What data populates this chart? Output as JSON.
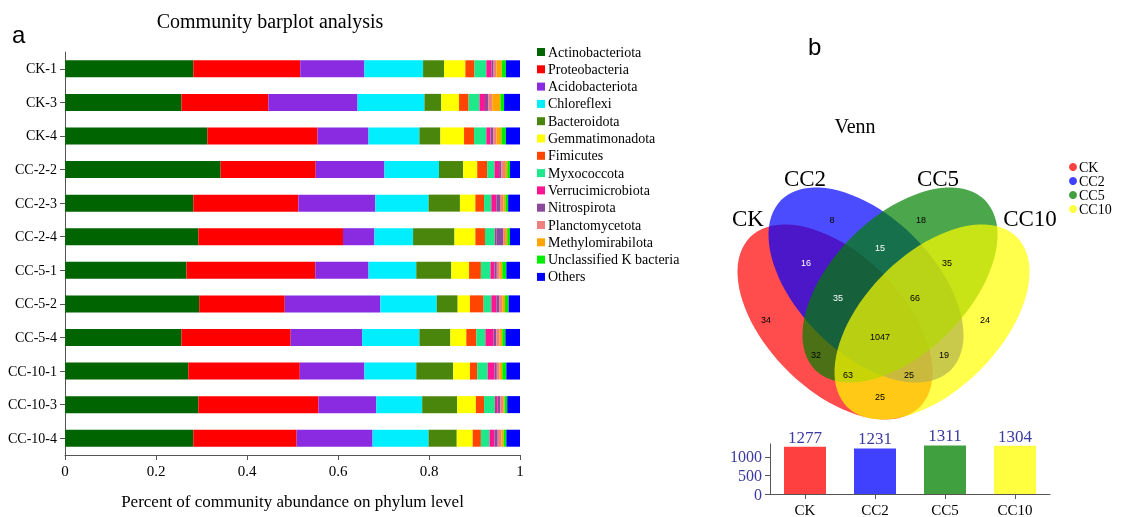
{
  "chart_data": [
    {
      "type": "bar",
      "title": "Community barplot analysis",
      "xlabel": "Percent of community abundance on phylum level",
      "annotations": [
        "a"
      ],
      "orientation": "horizontal",
      "stacked": true,
      "legend": "right",
      "xlim": [
        0,
        1
      ],
      "xticks": [
        0,
        0.2,
        0.4,
        0.6,
        0.8,
        1
      ],
      "categories": [
        "CK-1",
        "CK-3",
        "CK-4",
        "CC-2-2",
        "CC-2-3",
        "CC-2-4",
        "CC-5-1",
        "CC-5-2",
        "CC-5-4",
        "CC-10-1",
        "CC-10-3",
        "CC-10-4"
      ],
      "series": [
        {
          "name": "Actinobacteriota",
          "color": "#006400",
          "values": [
            0.282,
            0.256,
            0.313,
            0.342,
            0.282,
            0.293,
            0.267,
            0.295,
            0.256,
            0.271,
            0.293,
            0.282
          ]
        },
        {
          "name": "Proteobacteria",
          "color": "#ff0000",
          "values": [
            0.235,
            0.191,
            0.242,
            0.209,
            0.231,
            0.318,
            0.283,
            0.188,
            0.24,
            0.245,
            0.264,
            0.227
          ]
        },
        {
          "name": "Acidobacteriota",
          "color": "#8a2be2",
          "values": [
            0.141,
            0.196,
            0.112,
            0.151,
            0.169,
            0.069,
            0.117,
            0.21,
            0.157,
            0.142,
            0.127,
            0.167
          ]
        },
        {
          "name": "Chloreflexi",
          "color": "#00eeff",
          "values": [
            0.129,
            0.147,
            0.112,
            0.12,
            0.117,
            0.085,
            0.105,
            0.124,
            0.126,
            0.114,
            0.101,
            0.123
          ]
        },
        {
          "name": "Bacteroidota",
          "color": "#4a860c",
          "values": [
            0.046,
            0.037,
            0.046,
            0.053,
            0.069,
            0.091,
            0.077,
            0.046,
            0.068,
            0.081,
            0.077,
            0.062
          ]
        },
        {
          "name": "Gemmatimonadota",
          "color": "#ffff00",
          "values": [
            0.047,
            0.039,
            0.052,
            0.031,
            0.034,
            0.046,
            0.039,
            0.027,
            0.035,
            0.037,
            0.041,
            0.035
          ]
        },
        {
          "name": "Fimicutes",
          "color": "#ff4500",
          "values": [
            0.02,
            0.021,
            0.022,
            0.022,
            0.019,
            0.021,
            0.026,
            0.03,
            0.022,
            0.016,
            0.018,
            0.018
          ]
        },
        {
          "name": "Myxococcota",
          "color": "#1de98b",
          "values": [
            0.026,
            0.024,
            0.027,
            0.016,
            0.016,
            0.022,
            0.021,
            0.017,
            0.02,
            0.023,
            0.024,
            0.019
          ]
        },
        {
          "name": "Verrucimicrobiota",
          "color": "#ff1493",
          "values": [
            0.011,
            0.012,
            0.009,
            0.01,
            0.011,
            0.003,
            0.009,
            0.011,
            0.018,
            0.015,
            0.006,
            0.011
          ]
        },
        {
          "name": "Nitrospirota",
          "color": "#8b4a9c",
          "values": [
            0.005,
            0.007,
            0.006,
            0.005,
            0.008,
            0.015,
            0.005,
            0.006,
            0.006,
            0.005,
            0.006,
            0.007
          ]
        },
        {
          "name": "Planctomycetota",
          "color": "#f08080",
          "values": [
            0.006,
            0.009,
            0.007,
            0.008,
            0.007,
            0.004,
            0.006,
            0.007,
            0.007,
            0.006,
            0.006,
            0.008
          ]
        },
        {
          "name": "Methylomirabilota",
          "color": "#ffa500",
          "values": [
            0.012,
            0.018,
            0.011,
            0.005,
            0.005,
            0.005,
            0.006,
            0.006,
            0.006,
            0.006,
            0.003,
            0.005
          ]
        },
        {
          "name": "Unclassified K bacteria",
          "color": "#00ee00",
          "values": [
            0.009,
            0.008,
            0.01,
            0.006,
            0.006,
            0.006,
            0.009,
            0.008,
            0.007,
            0.009,
            0.006,
            0.006
          ]
        },
        {
          "name": "Others",
          "color": "#0000ff",
          "values": [
            0.031,
            0.035,
            0.031,
            0.022,
            0.026,
            0.022,
            0.03,
            0.025,
            0.032,
            0.03,
            0.028,
            0.03
          ]
        }
      ]
    },
    {
      "type": "other",
      "title": "Venn",
      "annotations": [
        "b",
        "8",
        "18",
        "16",
        "15",
        "35",
        "34",
        "35",
        "66",
        "24",
        "1047",
        "32",
        "19",
        "63",
        "25",
        "25"
      ],
      "legend": "right",
      "series": [
        {
          "name": "CK",
          "color": "#ff0000"
        },
        {
          "name": "CC2",
          "color": "#0000ff"
        },
        {
          "name": "CC5",
          "color": "#008000"
        },
        {
          "name": "CC10",
          "color": "#ffff00"
        }
      ]
    },
    {
      "type": "bar",
      "categories": [
        "CK",
        "CC2",
        "CC5",
        "CC10"
      ],
      "values": [
        1277,
        1231,
        1311,
        1304
      ],
      "colors": [
        "#ff4040",
        "#4040ff",
        "#40a040",
        "#ffff40"
      ],
      "data_labels": true,
      "ylim": [
        0,
        1350
      ],
      "yticks": [
        0,
        500,
        1000
      ]
    }
  ]
}
